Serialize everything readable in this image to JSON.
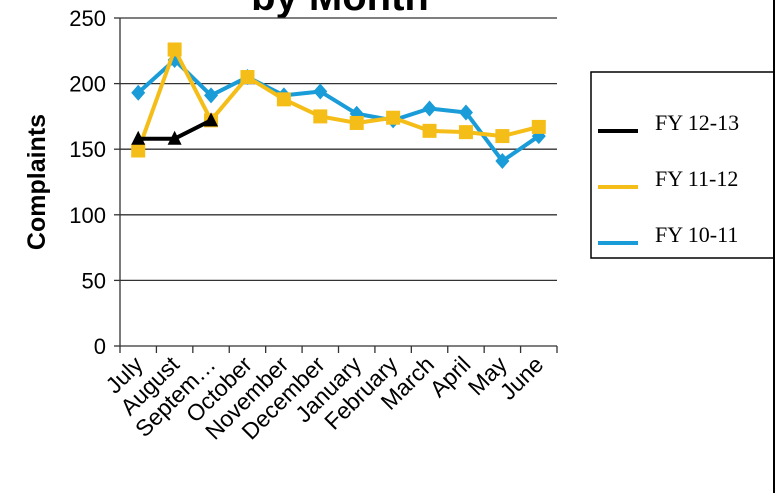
{
  "chart_data": {
    "type": "line",
    "title": "by Month",
    "xlabel": "",
    "ylabel": "Complaints",
    "ylim": [
      0,
      250
    ],
    "yticks": [
      0,
      50,
      100,
      150,
      200,
      250
    ],
    "categories": [
      "July",
      "August",
      "Septem…",
      "October",
      "November",
      "December",
      "January",
      "February",
      "March",
      "April",
      "May",
      "June"
    ],
    "grid": true,
    "legend_position": "right",
    "series": [
      {
        "name": "FY 12-13",
        "color": "#000000",
        "marker": "triangle",
        "values": [
          158,
          158,
          172,
          null,
          null,
          null,
          null,
          null,
          null,
          null,
          null,
          null
        ]
      },
      {
        "name": "FY 11-12",
        "color": "#f5bd17",
        "marker": "square",
        "values": [
          149,
          226,
          172,
          205,
          188,
          175,
          170,
          174,
          164,
          163,
          160,
          167
        ]
      },
      {
        "name": "FY 10-11",
        "color": "#1a9cd8",
        "marker": "diamond",
        "values": [
          193,
          218,
          191,
          205,
          191,
          194,
          177,
          172,
          181,
          178,
          141,
          160
        ]
      }
    ]
  }
}
